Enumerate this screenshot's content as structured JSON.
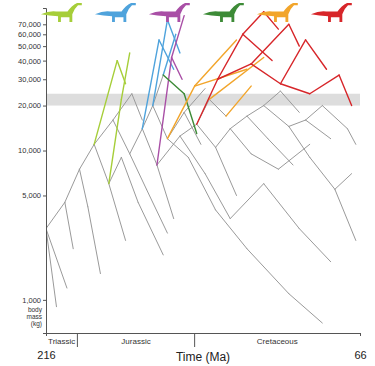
{
  "chart_data": {
    "type": "line",
    "xlabel": "Time (Ma)",
    "ylabel": "body mass (kg)",
    "log": "y",
    "xlim": [
      216,
      66
    ],
    "xticks": [
      216,
      66
    ],
    "ylim": [
      600,
      90000
    ],
    "yticks": [
      {
        "value": 1000,
        "label": "1,000"
      },
      {
        "value": 5000,
        "label": "5,000"
      },
      {
        "value": 10000,
        "label": "10,000"
      },
      {
        "value": 20000,
        "label": "20,000"
      },
      {
        "value": 30000,
        "label": "30,000"
      },
      {
        "value": 40000,
        "label": "40,000"
      },
      {
        "value": 50000,
        "label": "50,000"
      },
      {
        "value": 60000,
        "label": "60,000"
      },
      {
        "value": 70000,
        "label": "70,000"
      }
    ],
    "periods": [
      {
        "label": "Triassic",
        "start": 216,
        "end": 201
      },
      {
        "label": "Jurassic",
        "start": 201,
        "end": 145
      },
      {
        "label": "Cretaceous",
        "start": 145,
        "end": 66
      }
    ],
    "shaded_band": [
      20000,
      24000
    ],
    "series": [
      {
        "color": "#9a9a9a",
        "x": [
          216,
          211
        ],
        "values": [
          3000,
          900
        ]
      },
      {
        "color": "#9a9a9a",
        "x": [
          216,
          206
        ],
        "values": [
          3000,
          1200
        ]
      },
      {
        "color": "#9a9a9a",
        "x": [
          216,
          207
        ],
        "values": [
          3000,
          4500
        ]
      },
      {
        "color": "#9a9a9a",
        "x": [
          207,
          203
        ],
        "values": [
          4500,
          2200
        ]
      },
      {
        "color": "#9a9a9a",
        "x": [
          207,
          200
        ],
        "values": [
          4500,
          7500
        ]
      },
      {
        "color": "#9a9a9a",
        "x": [
          200,
          196
        ],
        "values": [
          7500,
          4200
        ]
      },
      {
        "color": "#9a9a9a",
        "x": [
          196,
          190
        ],
        "values": [
          4200,
          1500
        ]
      },
      {
        "color": "#9a9a9a",
        "x": [
          200,
          193
        ],
        "values": [
          7500,
          11000
        ]
      },
      {
        "color": "#9a9a9a",
        "x": [
          193,
          186
        ],
        "values": [
          11000,
          6000
        ]
      },
      {
        "color": "#9a9a9a",
        "x": [
          186,
          178
        ],
        "values": [
          6000,
          2500
        ]
      },
      {
        "color": "#9a9a9a",
        "x": [
          186,
          180
        ],
        "values": [
          6000,
          9000
        ]
      },
      {
        "color": "#9a9a9a",
        "x": [
          193,
          184
        ],
        "values": [
          11000,
          16000
        ]
      },
      {
        "color": "#9a9a9a",
        "x": [
          184,
          176
        ],
        "values": [
          16000,
          9500
        ]
      },
      {
        "color": "#9a9a9a",
        "x": [
          184,
          175
        ],
        "values": [
          16000,
          24000
        ]
      },
      {
        "color": "#9a9a9a",
        "x": [
          176,
          168
        ],
        "values": [
          9500,
          5500
        ]
      },
      {
        "color": "#9a9a9a",
        "x": [
          176,
          170
        ],
        "values": [
          9500,
          14000
        ]
      },
      {
        "color": "#9a9a9a",
        "x": [
          170,
          163
        ],
        "values": [
          14000,
          8000
        ]
      },
      {
        "color": "#9a9a9a",
        "x": [
          170,
          165
        ],
        "values": [
          14000,
          20000
        ]
      },
      {
        "color": "#9a9a9a",
        "x": [
          165,
          158
        ],
        "values": [
          20000,
          12000
        ]
      },
      {
        "color": "#9a9a9a",
        "x": [
          165,
          160
        ],
        "values": [
          20000,
          32000
        ]
      },
      {
        "color": "#9a9a9a",
        "x": [
          163,
          155
        ],
        "values": [
          8000,
          3500
        ]
      },
      {
        "color": "#9a9a9a",
        "x": [
          163,
          152
        ],
        "values": [
          8000,
          12500
        ]
      },
      {
        "color": "#9a9a9a",
        "x": [
          158,
          148
        ],
        "values": [
          12000,
          9000
        ]
      },
      {
        "color": "#9a9a9a",
        "x": [
          158,
          150
        ],
        "values": [
          12000,
          18000
        ]
      },
      {
        "color": "#9a9a9a",
        "x": [
          152,
          140
        ],
        "values": [
          12500,
          7000
        ]
      },
      {
        "color": "#9a9a9a",
        "x": [
          152,
          144
        ],
        "values": [
          12500,
          15000
        ]
      },
      {
        "color": "#9a9a9a",
        "x": [
          144,
          135
        ],
        "values": [
          15000,
          10500
        ]
      },
      {
        "color": "#9a9a9a",
        "x": [
          144,
          138
        ],
        "values": [
          15000,
          22000
        ]
      },
      {
        "color": "#9a9a9a",
        "x": [
          135,
          125
        ],
        "values": [
          10500,
          5000
        ]
      },
      {
        "color": "#9a9a9a",
        "x": [
          135,
          128
        ],
        "values": [
          10500,
          14000
        ]
      },
      {
        "color": "#9a9a9a",
        "x": [
          128,
          118
        ],
        "values": [
          14000,
          9500
        ]
      },
      {
        "color": "#9a9a9a",
        "x": [
          128,
          120
        ],
        "values": [
          14000,
          17000
        ]
      },
      {
        "color": "#9a9a9a",
        "x": [
          120,
          110
        ],
        "values": [
          17000,
          12000
        ]
      },
      {
        "color": "#9a9a9a",
        "x": [
          120,
          112
        ],
        "values": [
          17000,
          20000
        ]
      },
      {
        "color": "#9a9a9a",
        "x": [
          112,
          100
        ],
        "values": [
          20000,
          14500
        ]
      },
      {
        "color": "#9a9a9a",
        "x": [
          112,
          104
        ],
        "values": [
          20000,
          25000
        ]
      },
      {
        "color": "#9a9a9a",
        "x": [
          100,
          90
        ],
        "values": [
          14500,
          9000
        ]
      },
      {
        "color": "#9a9a9a",
        "x": [
          100,
          92
        ],
        "values": [
          14500,
          16000
        ]
      },
      {
        "color": "#9a9a9a",
        "x": [
          92,
          80
        ],
        "values": [
          16000,
          12000
        ]
      },
      {
        "color": "#9a9a9a",
        "x": [
          92,
          84
        ],
        "values": [
          16000,
          20000
        ]
      },
      {
        "color": "#9a9a9a",
        "x": [
          84,
          72
        ],
        "values": [
          20000,
          14000
        ]
      },
      {
        "color": "#9a9a9a",
        "x": [
          90,
          78
        ],
        "values": [
          9000,
          5500
        ]
      },
      {
        "color": "#9a9a9a",
        "x": [
          78,
          68
        ],
        "values": [
          5500,
          2500
        ]
      },
      {
        "color": "#9a9a9a",
        "x": [
          78,
          70
        ],
        "values": [
          5500,
          7000
        ]
      },
      {
        "color": "#9a9a9a",
        "x": [
          148,
          135
        ],
        "values": [
          9000,
          4000
        ]
      },
      {
        "color": "#9a9a9a",
        "x": [
          135,
          120
        ],
        "values": [
          4000,
          2200
        ]
      },
      {
        "color": "#9a9a9a",
        "x": [
          120,
          100
        ],
        "values": [
          2200,
          1100
        ]
      },
      {
        "color": "#9a9a9a",
        "x": [
          100,
          84
        ],
        "values": [
          1100,
          700
        ]
      },
      {
        "color": "#9a9a9a",
        "x": [
          140,
          128
        ],
        "values": [
          7000,
          3500
        ]
      },
      {
        "color": "#9a9a9a",
        "x": [
          128,
          112
        ],
        "values": [
          3500,
          6000
        ]
      },
      {
        "color": "#9a9a9a",
        "x": [
          112,
          95
        ],
        "values": [
          6000,
          3000
        ]
      },
      {
        "color": "#9a9a9a",
        "x": [
          95,
          80
        ],
        "values": [
          3000,
          1800
        ]
      },
      {
        "color": "#9a9a9a",
        "x": [
          180,
          172
        ],
        "values": [
          9000,
          4500
        ]
      },
      {
        "color": "#9a9a9a",
        "x": [
          172,
          160
        ],
        "values": [
          4500,
          2000
        ]
      },
      {
        "color": "#9a9a9a",
        "x": [
          168,
          158
        ],
        "values": [
          5500,
          2800
        ]
      },
      {
        "color": "#9a9a9a",
        "x": [
          175,
          170
        ],
        "values": [
          24000,
          16000
        ]
      },
      {
        "color": "#9a9a9a",
        "x": [
          150,
          140
        ],
        "values": [
          18000,
          26000
        ]
      },
      {
        "color": "#9a9a9a",
        "x": [
          150,
          142
        ],
        "values": [
          18000,
          11000
        ]
      },
      {
        "color": "#9a9a9a",
        "x": [
          104,
          95
        ],
        "values": [
          25000,
          18000
        ]
      },
      {
        "color": "#9a9a9a",
        "x": [
          118,
          105
        ],
        "values": [
          9500,
          7500
        ]
      },
      {
        "color": "#9a9a9a",
        "x": [
          105,
          90
        ],
        "values": [
          7500,
          11000
        ]
      },
      {
        "color": "#9a9a9a",
        "x": [
          138,
          130
        ],
        "values": [
          22000,
          17000
        ]
      },
      {
        "color": "#9a9a9a",
        "x": [
          110,
          98
        ],
        "values": [
          12000,
          8000
        ]
      },
      {
        "color": "#9a9a9a",
        "x": [
          72,
          68
        ],
        "values": [
          14000,
          11000
        ]
      },
      {
        "color": "#a6ce39",
        "x": [
          193,
          182
        ],
        "values": [
          11000,
          40000
        ]
      },
      {
        "color": "#a6ce39",
        "x": [
          186,
          180
        ],
        "values": [
          6000,
          22000
        ]
      },
      {
        "color": "#a6ce39",
        "x": [
          182,
          178
        ],
        "values": [
          40000,
          28000
        ]
      },
      {
        "color": "#a6ce39",
        "x": [
          180,
          176
        ],
        "values": [
          22000,
          45000
        ]
      },
      {
        "color": "#4fa3dc",
        "x": [
          170,
          162
        ],
        "values": [
          14000,
          55000
        ]
      },
      {
        "color": "#4fa3dc",
        "x": [
          165,
          158
        ],
        "values": [
          20000,
          75000
        ]
      },
      {
        "color": "#4fa3dc",
        "x": [
          162,
          155
        ],
        "values": [
          55000,
          35000
        ]
      },
      {
        "color": "#4fa3dc",
        "x": [
          158,
          152
        ],
        "values": [
          75000,
          45000
        ]
      },
      {
        "color": "#4fa3dc",
        "x": [
          160,
          154
        ],
        "values": [
          32000,
          60000
        ]
      },
      {
        "color": "#a94fa6",
        "x": [
          163,
          156
        ],
        "values": [
          8000,
          42000
        ]
      },
      {
        "color": "#a94fa6",
        "x": [
          156,
          150
        ],
        "values": [
          42000,
          80000
        ]
      },
      {
        "color": "#a94fa6",
        "x": [
          156,
          151
        ],
        "values": [
          42000,
          30000
        ]
      },
      {
        "color": "#3d8b37",
        "x": [
          160,
          150
        ],
        "values": [
          32000,
          24000
        ]
      },
      {
        "color": "#3d8b37",
        "x": [
          150,
          144
        ],
        "values": [
          24000,
          13000
        ]
      },
      {
        "color": "#f2a52b",
        "x": [
          158,
          145
        ],
        "values": [
          12000,
          27000
        ]
      },
      {
        "color": "#f2a52b",
        "x": [
          145,
          120
        ],
        "values": [
          27000,
          35000
        ]
      },
      {
        "color": "#f2a52b",
        "x": [
          145,
          125
        ],
        "values": [
          27000,
          55000
        ]
      },
      {
        "color": "#f2a52b",
        "x": [
          138,
          112
        ],
        "values": [
          22000,
          42000
        ]
      },
      {
        "color": "#f2a52b",
        "x": [
          130,
          118
        ],
        "values": [
          17000,
          27000
        ]
      },
      {
        "color": "#d7262a",
        "x": [
          144,
          134
        ],
        "values": [
          15000,
          30000
        ]
      },
      {
        "color": "#d7262a",
        "x": [
          134,
          122
        ],
        "values": [
          30000,
          60000
        ]
      },
      {
        "color": "#d7262a",
        "x": [
          134,
          118
        ],
        "values": [
          30000,
          38000
        ]
      },
      {
        "color": "#d7262a",
        "x": [
          122,
          112
        ],
        "values": [
          60000,
          85000
        ]
      },
      {
        "color": "#d7262a",
        "x": [
          122,
          108
        ],
        "values": [
          60000,
          40000
        ]
      },
      {
        "color": "#d7262a",
        "x": [
          118,
          100
        ],
        "values": [
          38000,
          70000
        ]
      },
      {
        "color": "#d7262a",
        "x": [
          118,
          104
        ],
        "values": [
          38000,
          28000
        ]
      },
      {
        "color": "#d7262a",
        "x": [
          104,
          92
        ],
        "values": [
          28000,
          55000
        ]
      },
      {
        "color": "#d7262a",
        "x": [
          104,
          90
        ],
        "values": [
          28000,
          24000
        ]
      },
      {
        "color": "#d7262a",
        "x": [
          100,
          95
        ],
        "values": [
          70000,
          50000
        ]
      },
      {
        "color": "#d7262a",
        "x": [
          92,
          82
        ],
        "values": [
          55000,
          35000
        ]
      },
      {
        "color": "#d7262a",
        "x": [
          90,
          76
        ],
        "values": [
          24000,
          32000
        ]
      },
      {
        "color": "#d7262a",
        "x": [
          112,
          105
        ],
        "values": [
          85000,
          65000
        ]
      },
      {
        "color": "#d7262a",
        "x": [
          76,
          70
        ],
        "values": [
          32000,
          20000
        ]
      }
    ]
  }
}
